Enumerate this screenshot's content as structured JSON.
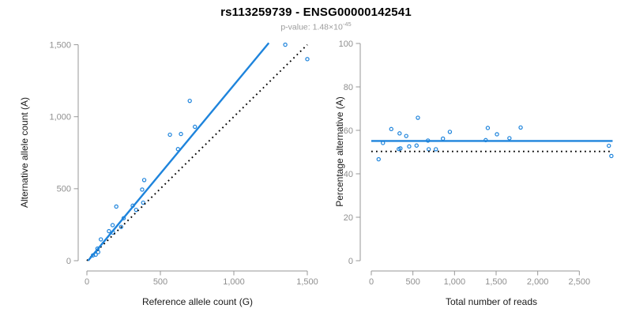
{
  "header": {
    "title": "rs113259739 - ENSG00000142541",
    "p_value_text": "p-value: 1.48×10",
    "p_value_exponent": "-45"
  },
  "colors": {
    "accent_blue": "#1e84dc",
    "dotted_black": "#000000",
    "axis_gray": "#979797",
    "tick_label_gray": "#8f8f8f",
    "axis_title_color": "#1a1a1a",
    "subtitle_gray": "#9c9c9c"
  },
  "chart_data": [
    {
      "type": "scatter",
      "panel": "left",
      "xlabel": "Reference allele count (G)",
      "ylabel": "Alternative allele count (A)",
      "xlim": [
        0,
        1500
      ],
      "ylim": [
        0,
        1500
      ],
      "grid": false,
      "xticks": {
        "values": [
          0,
          500,
          1000,
          1500
        ],
        "labels": [
          "0",
          "500",
          "1,000",
          "1,500"
        ]
      },
      "yticks": {
        "values": [
          0,
          500,
          1000,
          1500
        ],
        "labels": [
          "0",
          "500",
          "1,000",
          "1,500"
        ]
      },
      "points": [
        [
          1350,
          1500
        ],
        [
          1500,
          1400
        ],
        [
          700,
          1110
        ],
        [
          735,
          930
        ],
        [
          640,
          880
        ],
        [
          565,
          875
        ],
        [
          620,
          775
        ],
        [
          390,
          560
        ],
        [
          376,
          494
        ],
        [
          383,
          403
        ],
        [
          312,
          382
        ],
        [
          200,
          376
        ],
        [
          335,
          353
        ],
        [
          250,
          295
        ],
        [
          233,
          235
        ],
        [
          175,
          247
        ],
        [
          150,
          205
        ],
        [
          178,
          195
        ],
        [
          95,
          148
        ],
        [
          72,
          84
        ],
        [
          77,
          60
        ],
        [
          60,
          42
        ],
        [
          41,
          37
        ]
      ],
      "lines": [
        {
          "name": "identity-line",
          "x1": 0,
          "y1": 0,
          "x2": 1500,
          "y2": 1500,
          "style": "dotted",
          "color_key": "dotted_black",
          "width": 1.9
        },
        {
          "name": "regression-line",
          "x1": 8,
          "y1": 0,
          "x2": 1238,
          "y2": 1512,
          "style": "solid",
          "color_key": "accent_blue",
          "width": 2.4
        }
      ]
    },
    {
      "type": "scatter",
      "panel": "right",
      "xlabel": "Total number of reads",
      "ylabel": "Percentage alternative (A)",
      "xlim": [
        0,
        2900
      ],
      "ylim": [
        0,
        100
      ],
      "grid": false,
      "xticks": {
        "values": [
          0,
          500,
          1000,
          1500,
          2000,
          2500
        ],
        "labels": [
          "0",
          "500",
          "1,000",
          "1,500",
          "2,000",
          "2,500"
        ]
      },
      "yticks": {
        "values": [
          0,
          20,
          40,
          60,
          80,
          100
        ],
        "labels": [
          "0",
          "20",
          "40",
          "60",
          "80",
          "100"
        ]
      },
      "points": [
        [
          88,
          46.7
        ],
        [
          140,
          54.2
        ],
        [
          240,
          60.6
        ],
        [
          330,
          51.4
        ],
        [
          350,
          51.7
        ],
        [
          340,
          58.6
        ],
        [
          420,
          57.4
        ],
        [
          455,
          52.6
        ],
        [
          544,
          53.0
        ],
        [
          560,
          65.8
        ],
        [
          681,
          55.3
        ],
        [
          690,
          51.3
        ],
        [
          776,
          51.3
        ],
        [
          861,
          56.2
        ],
        [
          944,
          59.3
        ],
        [
          1375,
          55.5
        ],
        [
          1400,
          61.1
        ],
        [
          1510,
          58.2
        ],
        [
          1660,
          56.4
        ],
        [
          1795,
          61.3
        ],
        [
          2855,
          52.9
        ],
        [
          2885,
          48.2
        ]
      ],
      "lines": [
        {
          "name": "null-line",
          "x1": 0,
          "y1": 50.3,
          "x2": 2900,
          "y2": 50.3,
          "style": "dotted",
          "color_key": "dotted_black",
          "width": 1.9
        },
        {
          "name": "fitted-percentage-line",
          "x1": 0,
          "y1": 55.1,
          "x2": 2900,
          "y2": 55.1,
          "style": "solid",
          "color_key": "accent_blue",
          "width": 2.4
        }
      ]
    }
  ]
}
